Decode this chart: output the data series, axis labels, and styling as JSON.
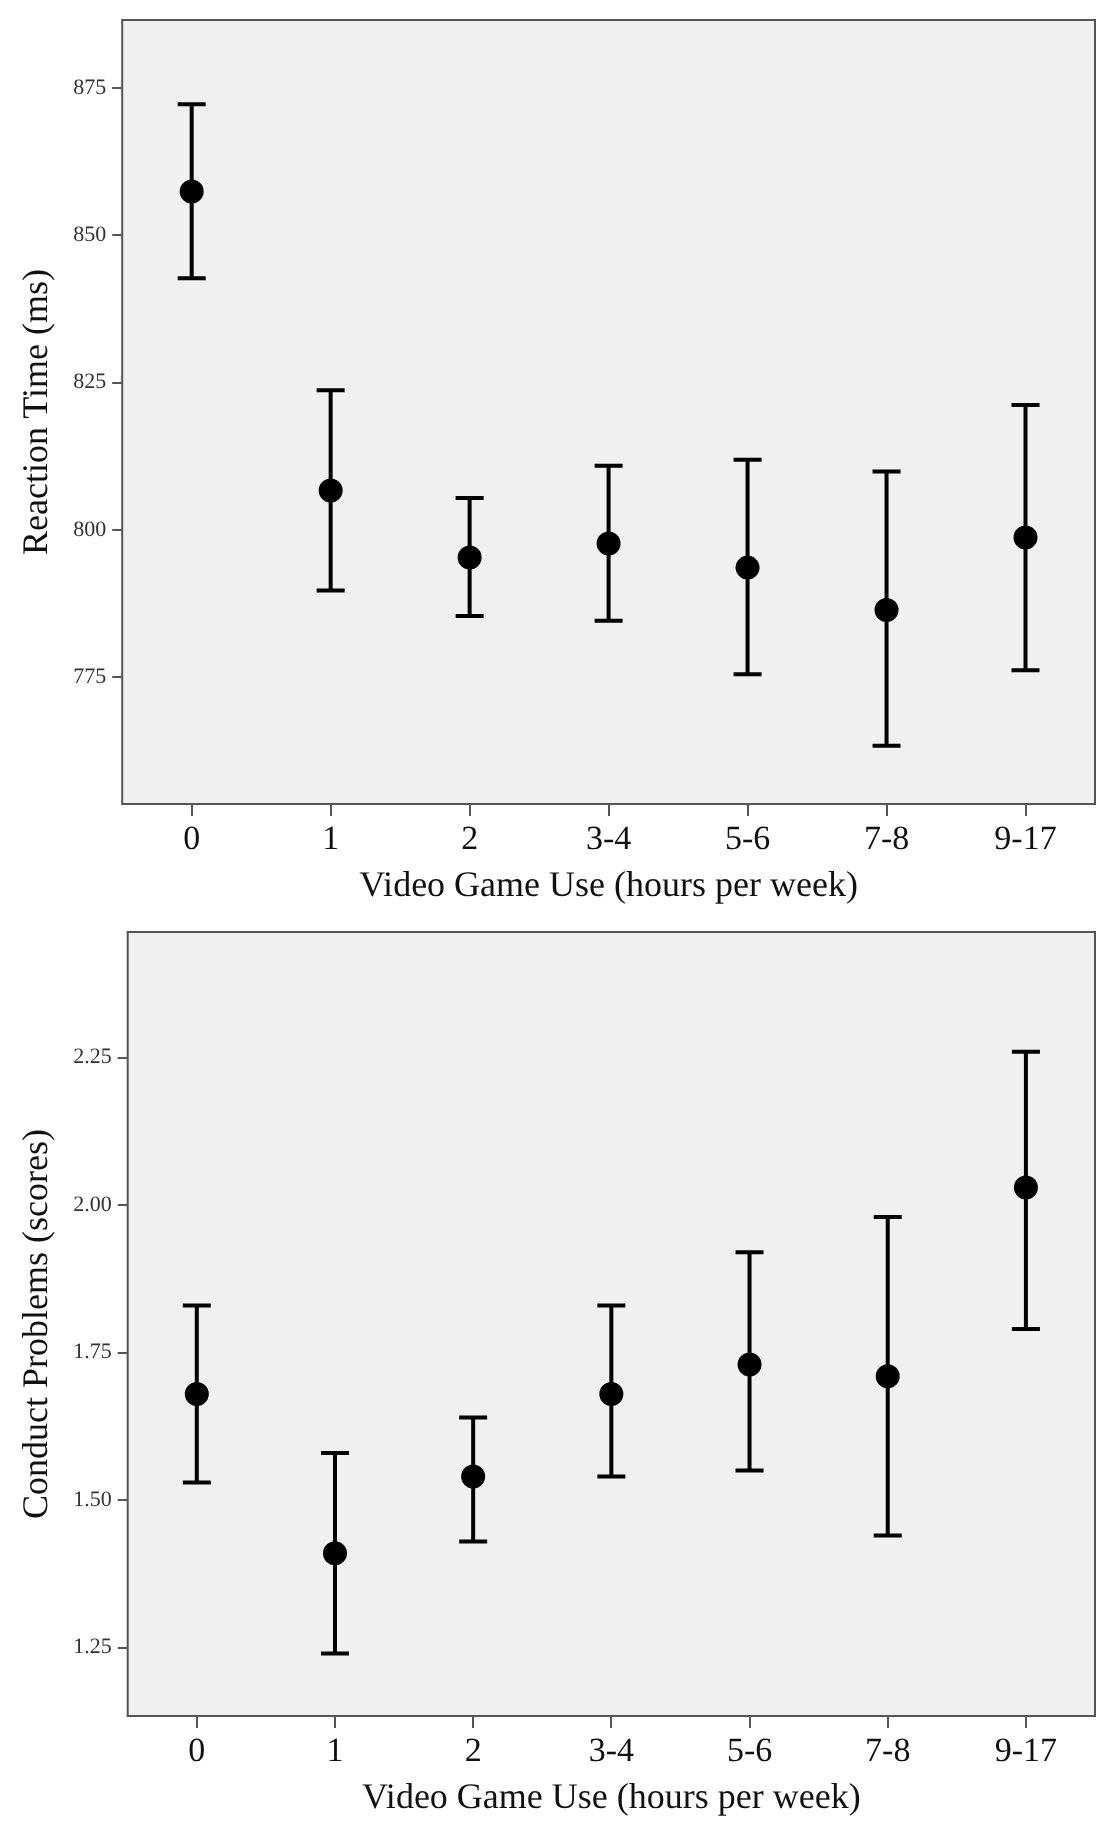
{
  "chart_data": [
    {
      "type": "scatter",
      "ylabel": "Reaction Time (ms)",
      "xlabel": "Video Game Use (hours per week)",
      "categories": [
        "0",
        "1",
        "2",
        "3-4",
        "5-6",
        "7-8",
        "9-17"
      ],
      "values": [
        857.4,
        806.7,
        795.3,
        797.7,
        793.6,
        786.4,
        798.7
      ],
      "errors": [
        [
          842.7,
          872.2
        ],
        [
          789.7,
          823.7
        ],
        [
          785.4,
          805.4
        ],
        [
          784.6,
          810.9
        ],
        [
          775.5,
          811.9
        ],
        [
          763.4,
          809.9
        ],
        [
          776.2,
          821.2
        ]
      ],
      "color": "#000000",
      "marker": "circle",
      "ylim": [
        753.5,
        886.5
      ],
      "yticks": [
        775,
        800,
        825,
        850,
        875
      ],
      "grid": false,
      "legend": false
    },
    {
      "type": "scatter",
      "ylabel": "Conduct Problems (scores)",
      "xlabel": "Video Game Use (hours per week)",
      "categories": [
        "0",
        "1",
        "2",
        "3-4",
        "5-6",
        "7-8",
        "9-17"
      ],
      "values": [
        1.68,
        1.41,
        1.54,
        1.68,
        1.73,
        1.71,
        2.03
      ],
      "errors": [
        [
          1.53,
          1.83
        ],
        [
          1.24,
          1.58
        ],
        [
          1.43,
          1.64
        ],
        [
          1.54,
          1.83
        ],
        [
          1.55,
          1.92
        ],
        [
          1.44,
          1.98
        ],
        [
          1.79,
          2.26
        ]
      ],
      "color": "#000000",
      "marker": "circle",
      "ylim": [
        1.134,
        2.463
      ],
      "yticks": [
        {
          "value": 1.25,
          "label": "1.25"
        },
        {
          "value": 1.5,
          "label": "1.50"
        },
        {
          "value": 1.75,
          "label": "1.75"
        },
        {
          "value": 2,
          "label": "2.00"
        },
        {
          "value": 2.25,
          "label": "2.25"
        }
      ],
      "grid": false,
      "legend": false
    }
  ]
}
